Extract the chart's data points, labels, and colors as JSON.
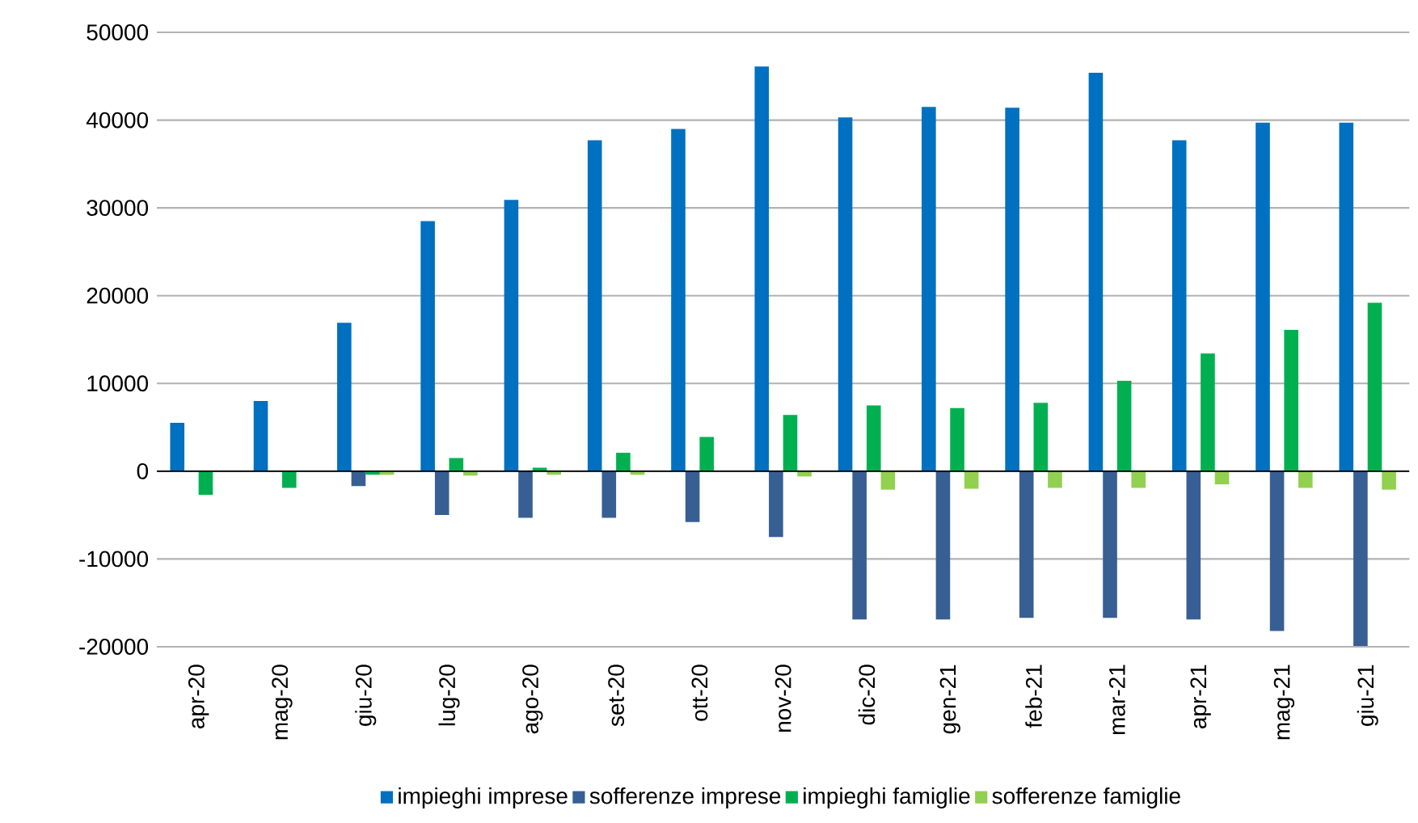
{
  "chart_data": {
    "type": "bar",
    "categories": [
      "apr-20",
      "mag-20",
      "giu-20",
      "lug-20",
      "ago-20",
      "set-20",
      "ott-20",
      "nov-20",
      "dic-20",
      "gen-21",
      "feb-21",
      "mar-21",
      "apr-21",
      "mag-21",
      "giu-21"
    ],
    "series": [
      {
        "name": "impieghi imprese",
        "color": "#0070c0",
        "values": [
          5500,
          8000,
          16900,
          28500,
          30900,
          37700,
          39000,
          46100,
          40300,
          41500,
          41400,
          45400,
          37700,
          39700,
          39700
        ]
      },
      {
        "name": "sofferenze imprese",
        "color": "#375f93",
        "values": [
          null,
          null,
          -1700,
          -5000,
          -5300,
          -5300,
          -5800,
          -7500,
          -16900,
          -16900,
          -16700,
          -16700,
          -16900,
          -18200,
          -19900
        ]
      },
      {
        "name": "impieghi famiglie",
        "color": "#00b050",
        "values": [
          -2700,
          -1900,
          -400,
          1500,
          400,
          2100,
          3900,
          6400,
          7500,
          7200,
          7800,
          10300,
          13400,
          16100,
          19200
        ]
      },
      {
        "name": "sofferenze famiglie",
        "color": "#92d050",
        "values": [
          null,
          null,
          -400,
          -500,
          -400,
          -400,
          null,
          -600,
          -2100,
          -2000,
          -1900,
          -1900,
          -1500,
          -1900,
          -2100
        ]
      }
    ],
    "ylim": [
      -20000,
      50000
    ],
    "yticks": [
      -20000,
      -10000,
      0,
      10000,
      20000,
      30000,
      40000,
      50000
    ],
    "grid": "y",
    "legend": "bottom"
  }
}
